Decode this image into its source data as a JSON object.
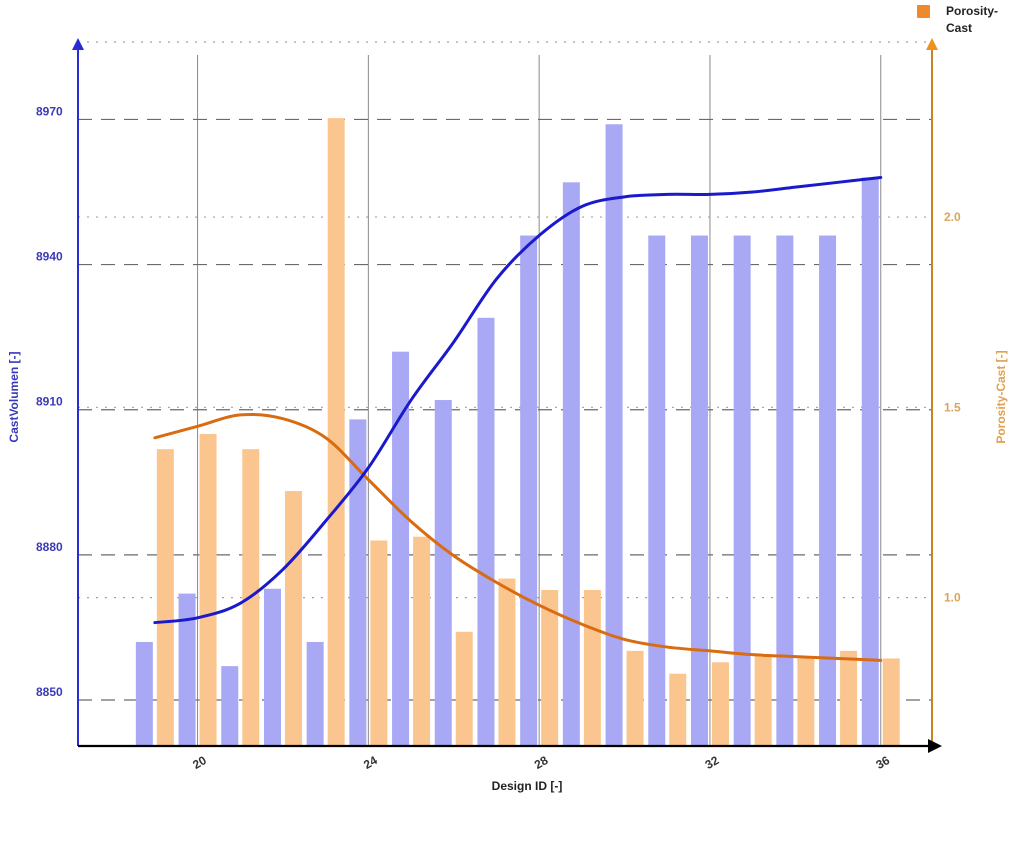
{
  "chart_data": {
    "type": "bar",
    "x_axis": {
      "label": "Design ID [-]",
      "range": [
        17.2,
        37.2
      ],
      "ticks": [
        20,
        24,
        28,
        32,
        36
      ]
    },
    "y_left": {
      "label": "CastVolumen [-]",
      "range": [
        8840.5,
        8986
      ],
      "ticks": [
        8850,
        8880,
        8910,
        8940,
        8970
      ]
    },
    "y_right": {
      "label": "Porosity-Cast [-]",
      "range": [
        0.61,
        2.46
      ],
      "ticks": [
        "1.0",
        "1.5",
        "2.0"
      ]
    },
    "series": [
      {
        "name": "",
        "kind": "bar",
        "axis": "left",
        "color": "#a8a8f5",
        "x": [
          19,
          20,
          21,
          22,
          23,
          24,
          25,
          26,
          27,
          28,
          29,
          30,
          31,
          32,
          33,
          34,
          35,
          36
        ],
        "values": [
          8862,
          8872,
          8857,
          8873,
          8862,
          8908,
          8922,
          8912,
          8929,
          8946,
          8957,
          8969,
          8946,
          8946,
          8946,
          8946,
          8946,
          8958
        ]
      },
      {
        "name": "Porosity-Cast",
        "kind": "bar",
        "axis": "right",
        "color": "#fbc58f",
        "x": [
          19,
          20,
          21,
          22,
          23,
          24,
          25,
          26,
          27,
          28,
          29,
          30,
          31,
          32,
          33,
          34,
          35,
          36
        ],
        "values": [
          1.39,
          1.43,
          1.39,
          1.28,
          2.26,
          1.15,
          1.16,
          0.91,
          1.05,
          1.02,
          1.02,
          0.86,
          0.8,
          0.83,
          0.85,
          0.84,
          0.86,
          0.84
        ]
      },
      {
        "name": "",
        "kind": "line",
        "axis": "left",
        "color": "#1a1acc",
        "x": [
          19,
          20,
          21,
          22,
          23,
          24,
          25,
          26,
          27,
          28,
          29,
          30,
          31,
          32,
          33,
          34,
          35,
          36
        ],
        "values": [
          8866,
          8867,
          8870,
          8877,
          8887,
          8898,
          8912,
          8924,
          8937,
          8946,
          8952,
          8954,
          8954.5,
          8954.5,
          8955,
          8956,
          8957,
          8958
        ]
      },
      {
        "name": "",
        "kind": "line",
        "axis": "right",
        "color": "#d96b10",
        "x": [
          19,
          20,
          21,
          22,
          23,
          24,
          25,
          26,
          27,
          28,
          29,
          30,
          31,
          32,
          33,
          34,
          35,
          36
        ],
        "values": [
          1.42,
          1.45,
          1.48,
          1.47,
          1.42,
          1.31,
          1.2,
          1.11,
          1.04,
          0.98,
          0.93,
          0.89,
          0.87,
          0.86,
          0.85,
          0.845,
          0.84,
          0.835
        ]
      }
    ],
    "legend": {
      "placement": "top-right",
      "items": [
        "Porosity-Cast"
      ],
      "color": "#ef8a2a"
    },
    "grid": true,
    "colors": {
      "left_axis": "#2b2bd6",
      "right_axis": "#c8841e",
      "x_axis": "#000000",
      "grid_major": "#8a8a8a",
      "grid_minor": "#a0a0a0",
      "left_tick_text": "#3a3ab8",
      "right_tick_text": "#d9a55a"
    }
  }
}
